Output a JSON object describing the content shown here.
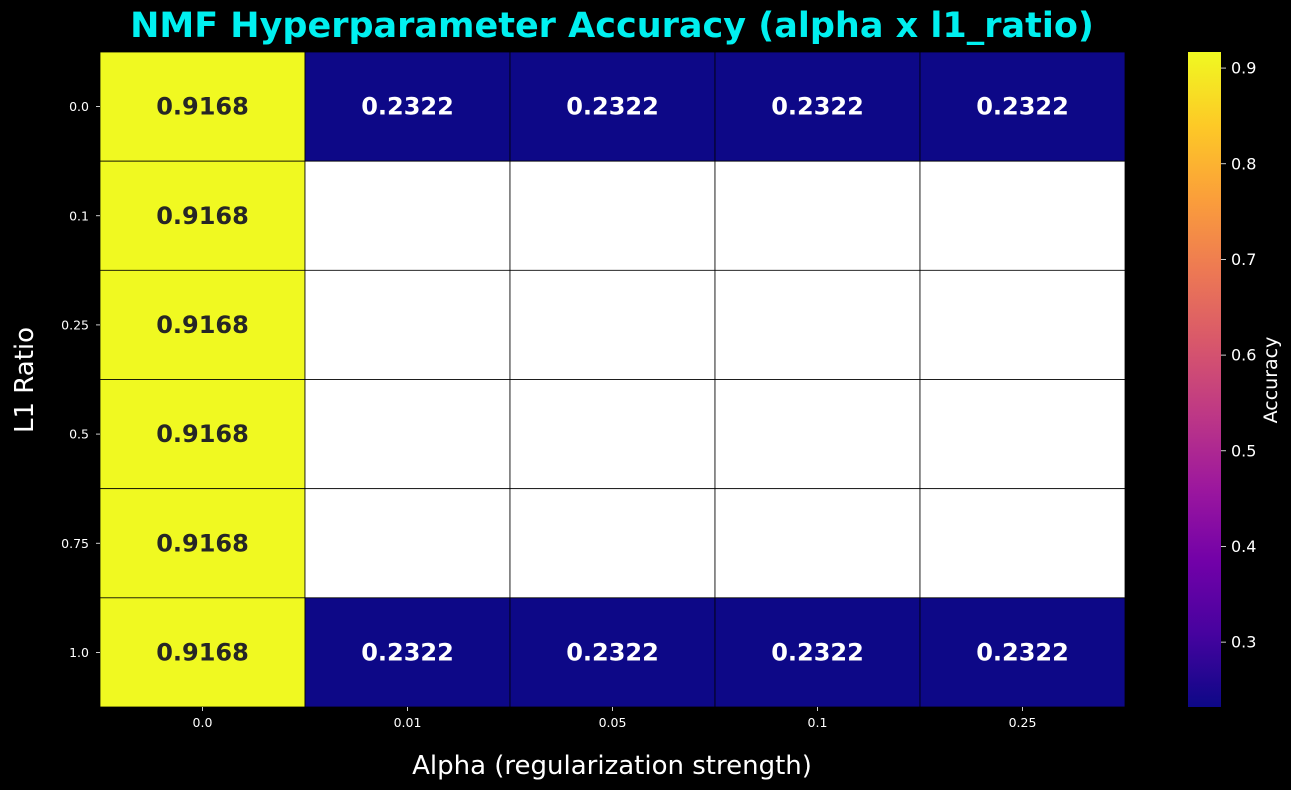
{
  "colors": {
    "background": "#000000",
    "title": "#00f0f0",
    "text": "#ffffff",
    "cell_border": "#000000",
    "missing_cell": "#ffffff",
    "dark_annotation": "#262626",
    "light_annotation": "#ffffff"
  },
  "colormap": {
    "name": "plasma",
    "stops": [
      "#0d0887",
      "#46039f",
      "#7201a8",
      "#9c179e",
      "#bd3786",
      "#d8576b",
      "#ed7953",
      "#fb9f3a",
      "#fdca26",
      "#f0f921"
    ]
  },
  "chart_data": {
    "type": "heatmap",
    "title": "NMF Hyperparameter Accuracy (alpha x l1_ratio)",
    "xlabel": "Alpha (regularization strength)",
    "ylabel": "L1 Ratio",
    "x_categories": [
      "0.0",
      "0.01",
      "0.05",
      "0.1",
      "0.25"
    ],
    "y_categories": [
      "0.0",
      "0.1",
      "0.25",
      "0.5",
      "0.75",
      "1.0"
    ],
    "values": [
      [
        0.9168,
        0.2322,
        0.2322,
        0.2322,
        0.2322
      ],
      [
        0.9168,
        null,
        null,
        null,
        null
      ],
      [
        0.9168,
        null,
        null,
        null,
        null
      ],
      [
        0.9168,
        null,
        null,
        null,
        null
      ],
      [
        0.9168,
        null,
        null,
        null,
        null
      ],
      [
        0.9168,
        0.2322,
        0.2322,
        0.2322,
        0.2322
      ]
    ],
    "value_format": "0.0000",
    "colorbar": {
      "label": "Accuracy",
      "vmin": 0.2322,
      "vmax": 0.9168,
      "ticks": [
        0.3,
        0.4,
        0.5,
        0.6,
        0.7,
        0.8,
        0.9
      ],
      "tick_labels": [
        "0.3",
        "0.4",
        "0.5",
        "0.6",
        "0.7",
        "0.8",
        "0.9"
      ]
    }
  }
}
